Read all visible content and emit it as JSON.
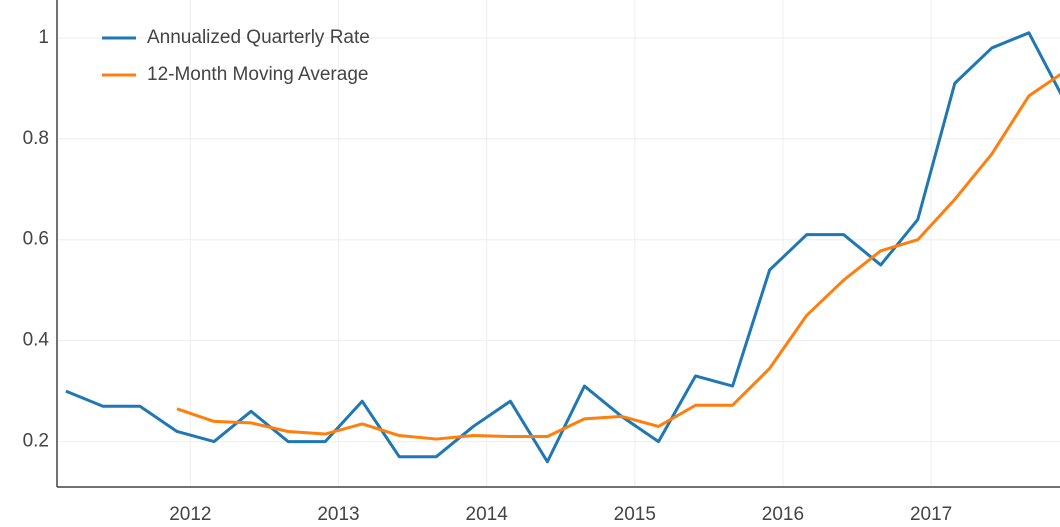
{
  "chart_data": {
    "type": "line",
    "x": [
      2011.16,
      2011.41,
      2011.66,
      2011.91,
      2012.16,
      2012.41,
      2012.66,
      2012.91,
      2013.16,
      2013.41,
      2013.66,
      2013.91,
      2014.16,
      2014.41,
      2014.66,
      2014.91,
      2015.16,
      2015.41,
      2015.66,
      2015.91,
      2016.16,
      2016.41,
      2016.66,
      2016.91,
      2017.16,
      2017.41,
      2017.66,
      2017.91
    ],
    "series": [
      {
        "name": "Annualized Quarterly Rate",
        "color": "#1f77b4",
        "values": [
          0.3,
          0.27,
          0.27,
          0.22,
          0.2,
          0.26,
          0.2,
          0.2,
          0.28,
          0.17,
          0.17,
          0.23,
          0.28,
          0.16,
          0.31,
          0.25,
          0.2,
          0.33,
          0.31,
          0.54,
          0.61,
          0.61,
          0.55,
          0.64,
          0.91,
          0.98,
          1.01,
          0.87
        ]
      },
      {
        "name": "12-Month Moving Average",
        "color": "#ff7f0e",
        "values": [
          null,
          null,
          null,
          0.265,
          0.24,
          0.237,
          0.22,
          0.215,
          0.235,
          0.212,
          0.205,
          0.212,
          0.21,
          0.21,
          0.245,
          0.25,
          0.23,
          0.272,
          0.272,
          0.345,
          0.45,
          0.52,
          0.578,
          0.6,
          0.68,
          0.77,
          0.885,
          0.935
        ]
      }
    ],
    "xlim": [
      2011.1,
      2017.87
    ],
    "xticks": [
      2012,
      2013,
      2014,
      2015,
      2016,
      2017
    ],
    "ylim": [
      0.11,
      1.075
    ],
    "yticks": [
      0.2,
      0.4,
      0.6,
      0.8,
      1
    ],
    "grid": true,
    "legend": "top-left"
  }
}
